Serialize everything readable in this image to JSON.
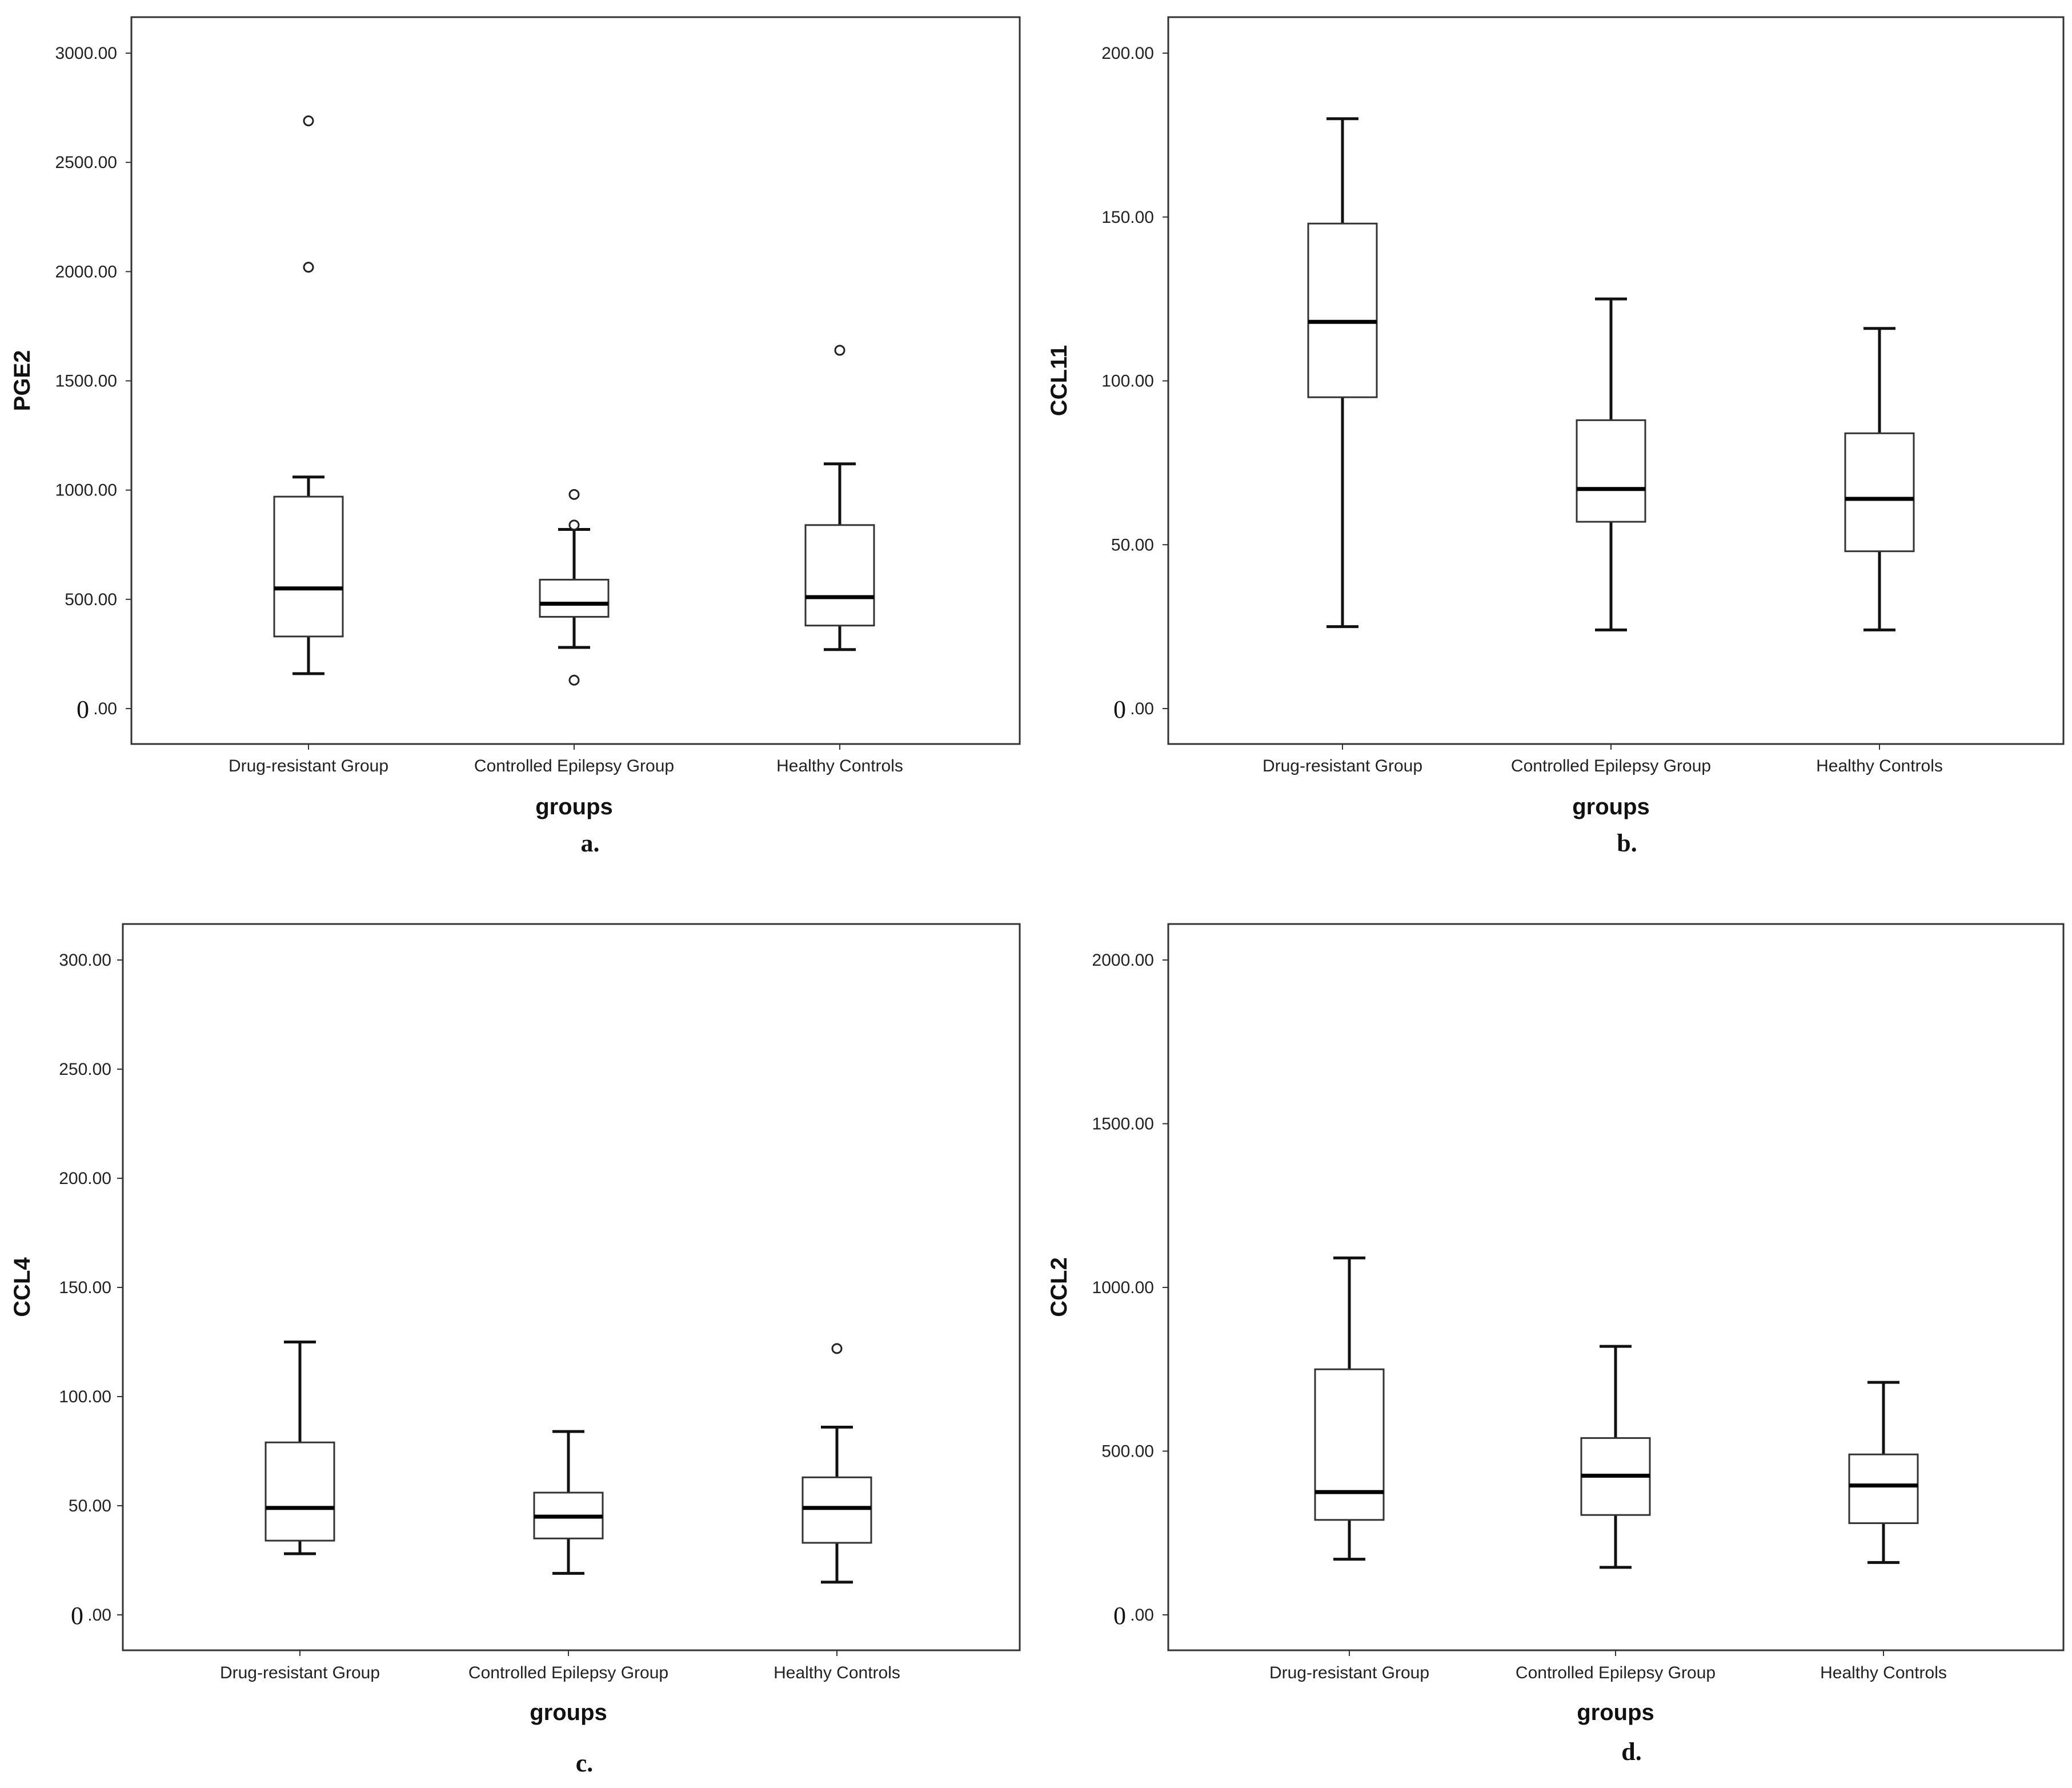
{
  "chart_data": [
    {
      "type": "boxplot",
      "panel_label": "a.",
      "xlabel": "groups",
      "ylabel": "PGE2",
      "ylim": [
        0,
        3000
      ],
      "yticks": [
        0,
        500,
        1000,
        1500,
        2000,
        2500,
        3000
      ],
      "ytick_labels": [
        "0.00",
        "500.00",
        "1000.00",
        "1500.00",
        "2000.00",
        "2500.00",
        "3000.00"
      ],
      "zero_prefix": "0",
      "categories": [
        "Drug-resistant Group",
        "Controlled Epilepsy Group",
        "Healthy Controls"
      ],
      "boxes": [
        {
          "whisker_low": 160,
          "q1": 330,
          "median": 550,
          "q3": 970,
          "whisker_high": 1060,
          "outliers": [
            2020,
            2690
          ]
        },
        {
          "whisker_low": 280,
          "q1": 420,
          "median": 480,
          "q3": 590,
          "whisker_high": 820,
          "outliers": [
            130,
            840,
            980
          ]
        },
        {
          "whisker_low": 270,
          "q1": 380,
          "median": 510,
          "q3": 840,
          "whisker_high": 1120,
          "outliers": [
            1640
          ]
        }
      ]
    },
    {
      "type": "boxplot",
      "panel_label": "b.",
      "xlabel": "groups",
      "ylabel": "CCL11",
      "ylim": [
        0,
        200
      ],
      "yticks": [
        0,
        50,
        100,
        150,
        200
      ],
      "ytick_labels": [
        "0.00",
        "50.00",
        "100.00",
        "150.00",
        "200.00"
      ],
      "zero_prefix": "0",
      "categories": [
        "Drug-resistant Group",
        "Controlled Epilepsy Group",
        "Healthy Controls"
      ],
      "boxes": [
        {
          "whisker_low": 25,
          "q1": 95,
          "median": 118,
          "q3": 148,
          "whisker_high": 180,
          "outliers": []
        },
        {
          "whisker_low": 24,
          "q1": 57,
          "median": 67,
          "q3": 88,
          "whisker_high": 125,
          "outliers": []
        },
        {
          "whisker_low": 24,
          "q1": 48,
          "median": 64,
          "q3": 84,
          "whisker_high": 116,
          "outliers": []
        }
      ]
    },
    {
      "type": "boxplot",
      "panel_label": "c.",
      "xlabel": "groups",
      "ylabel": "CCL4",
      "ylim": [
        0,
        300
      ],
      "yticks": [
        0,
        50,
        100,
        150,
        200,
        250,
        300
      ],
      "ytick_labels": [
        "0.00",
        "50.00",
        "100.00",
        "150.00",
        "200.00",
        "250.00",
        "300.00"
      ],
      "zero_prefix": "0",
      "categories": [
        "Drug-resistant Group",
        "Controlled Epilepsy Group",
        "Healthy Controls"
      ],
      "boxes": [
        {
          "whisker_low": 28,
          "q1": 34,
          "median": 49,
          "q3": 79,
          "whisker_high": 125,
          "outliers": []
        },
        {
          "whisker_low": 19,
          "q1": 35,
          "median": 45,
          "q3": 56,
          "whisker_high": 84,
          "outliers": []
        },
        {
          "whisker_low": 15,
          "q1": 33,
          "median": 49,
          "q3": 63,
          "whisker_high": 86,
          "outliers": [
            122
          ]
        }
      ]
    },
    {
      "type": "boxplot",
      "panel_label": "d.",
      "xlabel": "groups",
      "ylabel": "CCL2",
      "ylim": [
        0,
        2000
      ],
      "yticks": [
        0,
        500,
        1000,
        1500,
        2000
      ],
      "ytick_labels": [
        "0.00",
        "500.00",
        "1000.00",
        "1500.00",
        "2000.00"
      ],
      "zero_prefix": "0",
      "categories": [
        "Drug-resistant Group",
        "Controlled Epilepsy Group",
        "Healthy Controls"
      ],
      "boxes": [
        {
          "whisker_low": 170,
          "q1": 290,
          "median": 375,
          "q3": 750,
          "whisker_high": 1090,
          "outliers": []
        },
        {
          "whisker_low": 145,
          "q1": 305,
          "median": 425,
          "q3": 540,
          "whisker_high": 820,
          "outliers": []
        },
        {
          "whisker_low": 160,
          "q1": 280,
          "median": 395,
          "q3": 490,
          "whisker_high": 710,
          "outliers": []
        }
      ]
    }
  ]
}
